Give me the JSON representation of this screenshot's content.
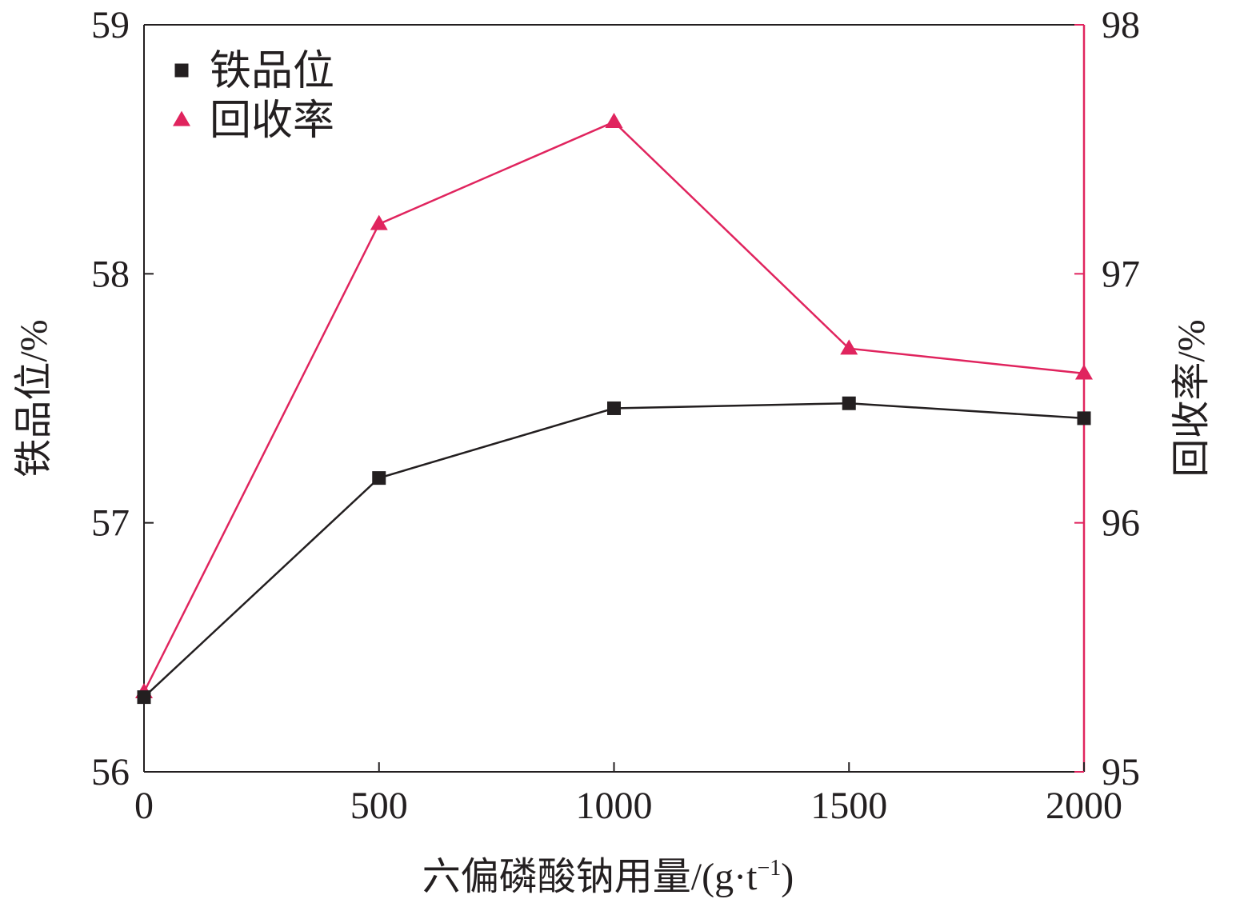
{
  "chart_data": {
    "type": "line",
    "xlabel_main": "六偏磷酸钠用量/(g·t",
    "xlabel_sup": "−1",
    "xlabel_close": ")",
    "ylabel": "铁品位/%",
    "y2label": "回收率/%",
    "x": [
      0,
      500,
      1000,
      1500,
      2000
    ],
    "xlim": [
      0,
      2000
    ],
    "xticks": [
      "0",
      "500",
      "1000",
      "1500",
      "2000"
    ],
    "ylim": [
      56,
      59
    ],
    "yticks": [
      "56",
      "57",
      "58",
      "59"
    ],
    "y2lim": [
      95,
      98
    ],
    "y2ticks": [
      "95",
      "96",
      "97",
      "98"
    ],
    "legend_position": "top-left",
    "series": [
      {
        "name": "铁品位",
        "axis": "left",
        "marker": "square",
        "color": "#231f20",
        "values": [
          56.3,
          57.18,
          57.46,
          57.48,
          57.42
        ]
      },
      {
        "name": "回收率",
        "axis": "right",
        "marker": "triangle",
        "color": "#e0245e",
        "values": [
          95.32,
          97.2,
          97.61,
          96.7,
          96.6
        ]
      }
    ]
  }
}
